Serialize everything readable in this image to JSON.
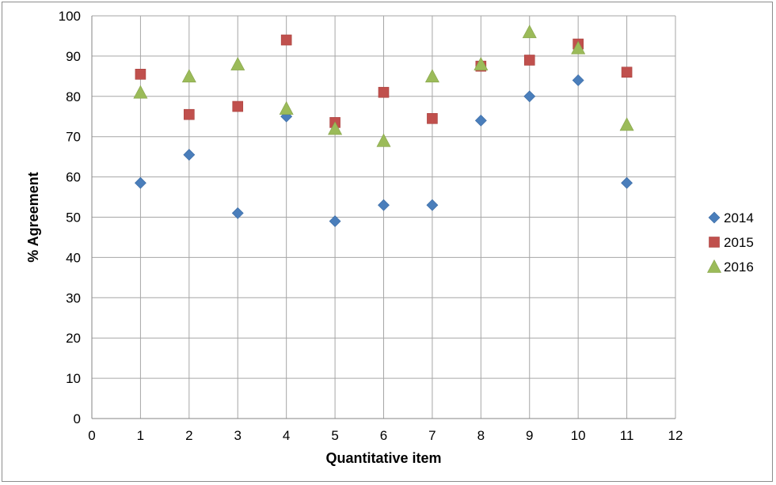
{
  "chart_data": {
    "type": "scatter",
    "xlabel": "Quantitative item",
    "ylabel": "% Agreement",
    "xlim": [
      0,
      12
    ],
    "ylim": [
      0,
      100
    ],
    "x_ticks": [
      0,
      1,
      2,
      3,
      4,
      5,
      6,
      7,
      8,
      9,
      10,
      11,
      12
    ],
    "y_ticks": [
      0,
      10,
      20,
      30,
      40,
      50,
      60,
      70,
      80,
      90,
      100
    ],
    "grid": true,
    "legend_position": "right",
    "series": [
      {
        "name": "2014",
        "marker": "diamond",
        "color": "#4a7ebb",
        "points": [
          [
            1,
            58.5
          ],
          [
            2,
            65.5
          ],
          [
            3,
            51
          ],
          [
            4,
            75
          ],
          [
            5,
            49
          ],
          [
            6,
            53
          ],
          [
            7,
            53
          ],
          [
            8,
            74
          ],
          [
            9,
            80
          ],
          [
            10,
            84
          ],
          [
            11,
            58.5
          ]
        ]
      },
      {
        "name": "2015",
        "marker": "square",
        "color": "#c0504d",
        "points": [
          [
            1,
            85.5
          ],
          [
            2,
            75.5
          ],
          [
            3,
            77.5
          ],
          [
            4,
            94
          ],
          [
            5,
            73.5
          ],
          [
            6,
            81
          ],
          [
            7,
            74.5
          ],
          [
            8,
            87.5
          ],
          [
            9,
            89
          ],
          [
            10,
            93
          ],
          [
            11,
            86
          ]
        ]
      },
      {
        "name": "2016",
        "marker": "triangle",
        "color": "#9bbb59",
        "points": [
          [
            1,
            81
          ],
          [
            2,
            85
          ],
          [
            3,
            88
          ],
          [
            4,
            77
          ],
          [
            5,
            72
          ],
          [
            6,
            69
          ],
          [
            7,
            85
          ],
          [
            8,
            88
          ],
          [
            9,
            96
          ],
          [
            10,
            92
          ],
          [
            11,
            73
          ]
        ]
      }
    ]
  }
}
